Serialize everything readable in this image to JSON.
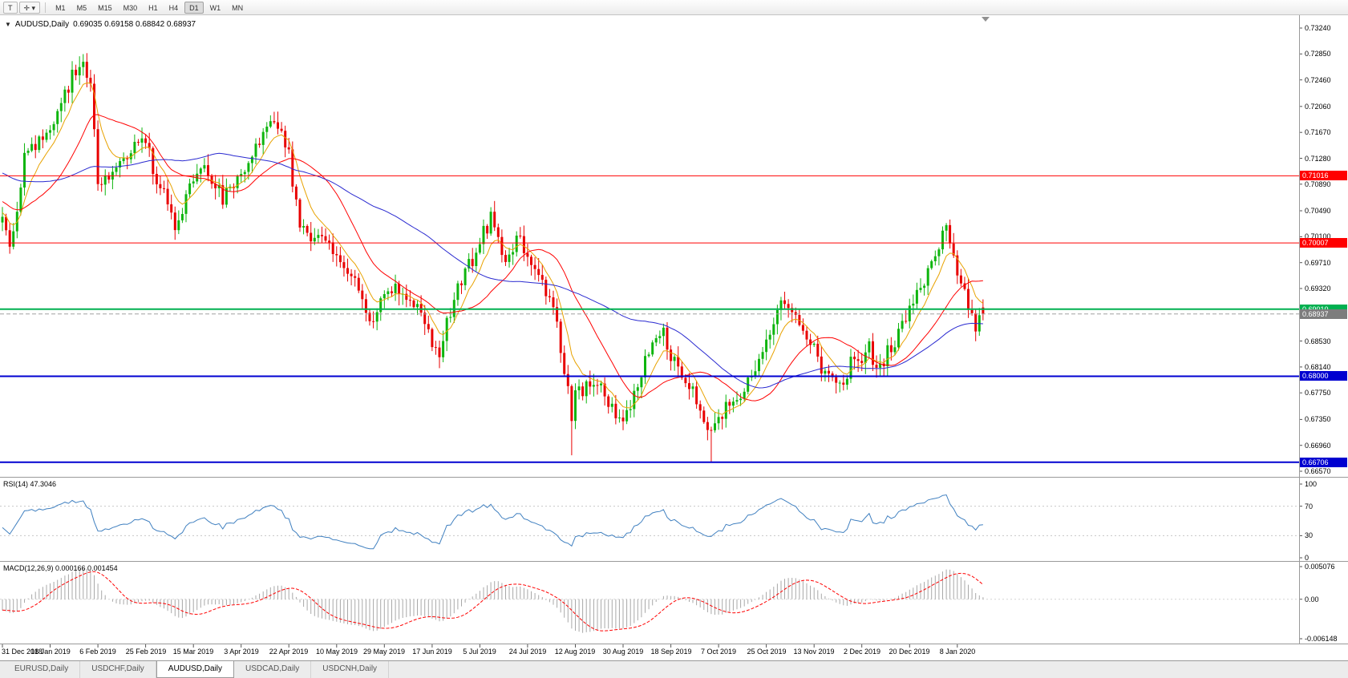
{
  "toolbar": {
    "tools": [
      {
        "name": "text-tool",
        "label": "T"
      },
      {
        "name": "crosshair-tool",
        "label": "✛",
        "caret": "▾"
      }
    ],
    "timeframes": [
      "M1",
      "M5",
      "M15",
      "M30",
      "H1",
      "H4",
      "D1",
      "W1",
      "MN"
    ],
    "active_timeframe": "D1"
  },
  "chart_data": {
    "type": "candlestick",
    "title": "AUDUSD,Daily",
    "ohlc_text": "0.69035 0.69158 0.68842 0.68937",
    "last_candle": {
      "open": 0.69035,
      "high": 0.69158,
      "low": 0.68842,
      "close": 0.68937
    },
    "y_ticks": [
      "0.73240",
      "0.72850",
      "0.72460",
      "0.72060",
      "0.71670",
      "0.71280",
      "0.70890",
      "0.70490",
      "0.70100",
      "0.69710",
      "0.69320",
      "0.68930",
      "0.68530",
      "0.68140",
      "0.67750",
      "0.67350",
      "0.66960",
      "0.66570"
    ],
    "y_range": [
      0.66486,
      0.73433
    ],
    "x_labels": [
      "31 Dec 2018",
      "18 Jan 2019",
      "6 Feb 2019",
      "25 Feb 2019",
      "15 Mar 2019",
      "3 Apr 2019",
      "22 Apr 2019",
      "10 May 2019",
      "29 May 2019",
      "17 Jun 2019",
      "5 Jul 2019",
      "24 Jul 2019",
      "12 Aug 2019",
      "30 Aug 2019",
      "18 Sep 2019",
      "7 Oct 2019",
      "25 Oct 2019",
      "13 Nov 2019",
      "2 Dec 2019",
      "20 Dec 2019",
      "8 Jan 2020"
    ],
    "candles_per_label": 13,
    "visible_candles": 268,
    "seed": 20190101,
    "price_path": [
      [
        0,
        0.704
      ],
      [
        2,
        0.6988
      ],
      [
        6,
        0.7125
      ],
      [
        13,
        0.717
      ],
      [
        19,
        0.7252
      ],
      [
        22,
        0.7286
      ],
      [
        24,
        0.7238
      ],
      [
        26,
        0.7092
      ],
      [
        30,
        0.7112
      ],
      [
        35,
        0.714
      ],
      [
        39,
        0.7152
      ],
      [
        43,
        0.7082
      ],
      [
        47,
        0.7032
      ],
      [
        52,
        0.709
      ],
      [
        56,
        0.7112
      ],
      [
        60,
        0.7062
      ],
      [
        65,
        0.7112
      ],
      [
        72,
        0.7168
      ],
      [
        76,
        0.7182
      ],
      [
        78,
        0.7132
      ],
      [
        81,
        0.7022
      ],
      [
        86,
        0.7006
      ],
      [
        91,
        0.6992
      ],
      [
        96,
        0.6936
      ],
      [
        100,
        0.6872
      ],
      [
        104,
        0.692
      ],
      [
        108,
        0.6936
      ],
      [
        112,
        0.6906
      ],
      [
        117,
        0.6856
      ],
      [
        119,
        0.684
      ],
      [
        124,
        0.6932
      ],
      [
        128,
        0.6976
      ],
      [
        130,
        0.7002
      ],
      [
        133,
        0.7036
      ],
      [
        137,
        0.6976
      ],
      [
        140,
        0.701
      ],
      [
        143,
        0.6986
      ],
      [
        147,
        0.6942
      ],
      [
        151,
        0.6882
      ],
      [
        153,
        0.6802
      ],
      [
        155,
        0.6745
      ],
      [
        156,
        0.6772
      ],
      [
        160,
        0.6786
      ],
      [
        164,
        0.6776
      ],
      [
        168,
        0.6736
      ],
      [
        169,
        0.6732
      ],
      [
        173,
        0.6792
      ],
      [
        177,
        0.6856
      ],
      [
        180,
        0.6866
      ],
      [
        182,
        0.6832
      ],
      [
        186,
        0.6792
      ],
      [
        190,
        0.6756
      ],
      [
        193,
        0.6706
      ],
      [
        195,
        0.6736
      ],
      [
        199,
        0.6762
      ],
      [
        203,
        0.6792
      ],
      [
        208,
        0.6852
      ],
      [
        212,
        0.6922
      ],
      [
        215,
        0.6892
      ],
      [
        219,
        0.6846
      ],
      [
        221,
        0.684
      ],
      [
        225,
        0.6792
      ],
      [
        229,
        0.6796
      ],
      [
        232,
        0.683
      ],
      [
        234,
        0.6822
      ],
      [
        236,
        0.6852
      ],
      [
        238,
        0.6804
      ],
      [
        242,
        0.6846
      ],
      [
        246,
        0.6886
      ],
      [
        247,
        0.6902
      ],
      [
        251,
        0.6946
      ],
      [
        255,
        0.7002
      ],
      [
        257,
        0.7028
      ],
      [
        259,
        0.6986
      ],
      [
        260,
        0.6962
      ],
      [
        263,
        0.6902
      ],
      [
        265,
        0.6872
      ],
      [
        267,
        0.68937
      ]
    ],
    "wick_lows": [
      [
        155,
        0.6681
      ],
      [
        193,
        0.6671
      ]
    ],
    "horizontal_lines": [
      {
        "price": 0.71016,
        "label": "0.71016",
        "color": "#ff0000",
        "width": 1,
        "style": "solid"
      },
      {
        "price": 0.70007,
        "label": "0.70007",
        "color": "#ff0000",
        "width": 1,
        "style": "solid"
      },
      {
        "price": 0.6901,
        "label": "0.69010",
        "color": "#00b050",
        "width": 2,
        "style": "solid"
      },
      {
        "price": 0.68937,
        "label": "0.68937",
        "color": "#a0a0a0",
        "badge": "#7d7d7d",
        "width": 1,
        "style": "dashed",
        "role": "bid-price"
      },
      {
        "price": 0.68,
        "label": "0.68000",
        "color": "#0000d0",
        "width": 2,
        "style": "solid"
      },
      {
        "price": 0.66706,
        "label": "0.66706",
        "color": "#0000d0",
        "width": 2,
        "style": "solid"
      }
    ],
    "moving_averages": [
      {
        "name": "ma-fast-orange",
        "type": "ema",
        "period": 8,
        "color": "#e8a200"
      },
      {
        "name": "ma-mid-red",
        "type": "sma",
        "period": 21,
        "color": "#ff0000"
      },
      {
        "name": "ma-slow-blue",
        "type": "sma",
        "period": 55,
        "color": "#2a2ad0"
      }
    ],
    "indicators": {
      "rsi": {
        "label": "RSI(14) 47.3046",
        "period": 14,
        "color": "#4080c0",
        "ticks": [
          100,
          70,
          30,
          0
        ],
        "levels": [
          70,
          30
        ]
      },
      "macd": {
        "label": "MACD(12,26,9) 0.000166 0.001454",
        "fast": 12,
        "slow": 26,
        "signal": 9,
        "hist_color": "#a8a8a8",
        "signal_color": "#ff0000",
        "ticks": [
          "0.005076",
          "0.00",
          "-0.006148"
        ],
        "tick_values": [
          0.005076,
          0,
          -0.006148
        ],
        "range": [
          -0.006148,
          0.005076
        ]
      }
    },
    "colors": {
      "bull": "#0eb50e",
      "bear": "#e80000",
      "frame": "#9a9a9a",
      "axis_text": "#000000"
    },
    "shift_marker": true
  },
  "tabs": [
    {
      "label": "EURUSD,Daily",
      "active": false
    },
    {
      "label": "USDCHF,Daily",
      "active": false
    },
    {
      "label": "AUDUSD,Daily",
      "active": true
    },
    {
      "label": "USDCAD,Daily",
      "active": false
    },
    {
      "label": "USDCNH,Daily",
      "active": false
    }
  ]
}
